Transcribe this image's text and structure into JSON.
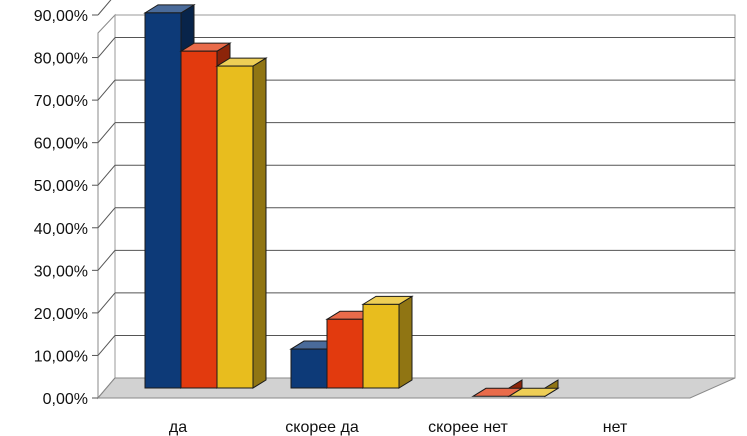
{
  "chart_data": {
    "type": "bar",
    "title": "",
    "xlabel": "",
    "ylabel": "",
    "categories": [
      "да",
      "скорее да",
      "скорее нет",
      "нет"
    ],
    "series": [
      {
        "color": "#0d3a78",
        "values": [
          90.5,
          11.5,
          0.0,
          0.0
        ]
      },
      {
        "color": "#e23a0e",
        "values": [
          81.5,
          18.5,
          0.4,
          0.0
        ]
      },
      {
        "color": "#e8bd1e",
        "values": [
          78.0,
          22.0,
          0.4,
          0.0
        ]
      }
    ],
    "ylim": [
      0,
      90
    ],
    "yticks": [
      0,
      10,
      20,
      30,
      40,
      50,
      60,
      70,
      80,
      90
    ],
    "ytick_labels": [
      "0,00%",
      "10,00%",
      "20,00%",
      "30,00%",
      "40,00%",
      "50,00%",
      "60,00%",
      "70,00%",
      "80,00%",
      "90,00%"
    ],
    "grid": true,
    "legend": "none",
    "style": "3d-clustered-bar"
  }
}
